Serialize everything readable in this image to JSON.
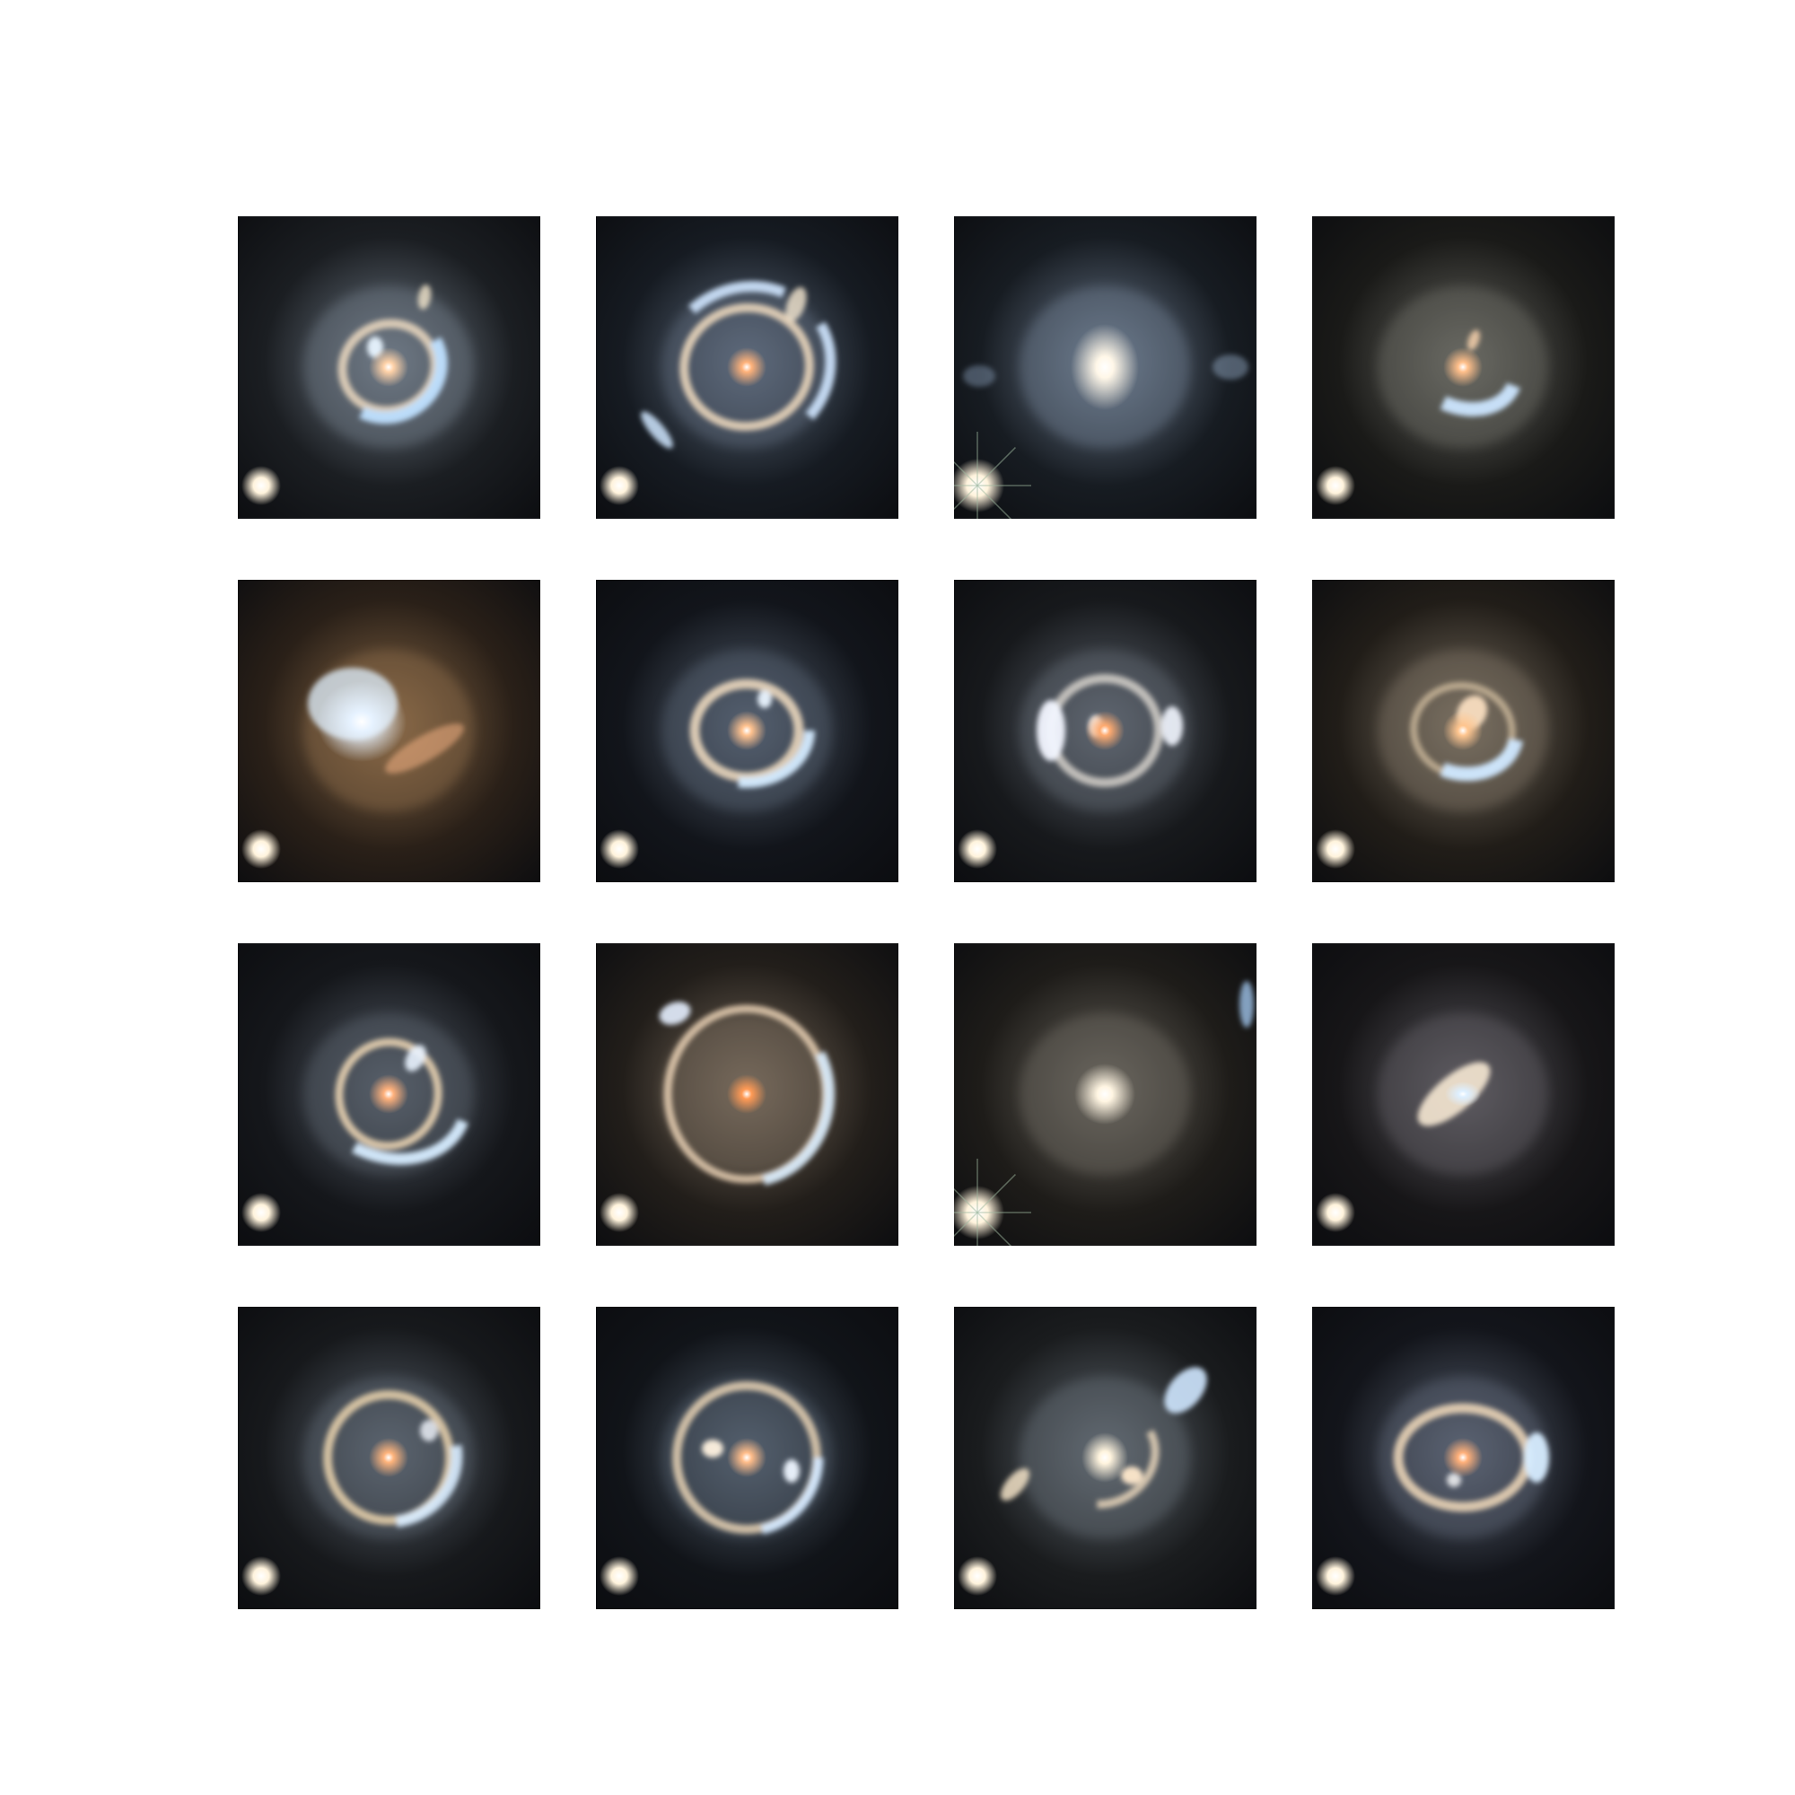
{
  "figure": {
    "grid_rows": 4,
    "grid_cols": 4,
    "background": "#ffffff"
  },
  "panels": [
    {
      "id": "r1c1",
      "kind": "partial-ring-with-bright-arcs",
      "bg_tint": "#1b1e22",
      "halo": "#6f7a86",
      "core": "#ffd2a8",
      "arc": "#bfe0ff",
      "corner_star": true
    },
    {
      "id": "r1c2",
      "kind": "complete-ring-with-arcs",
      "bg_tint": "#161b22",
      "halo": "#5e6b7c",
      "core": "#ffb27a",
      "arc": "#cfe6ff",
      "corner_star": true
    },
    {
      "id": "r1c3",
      "kind": "bright-elliptical-core",
      "bg_tint": "#171c22",
      "halo": "#6d7b8e",
      "core": "#fff7e8",
      "arc": "#a9c4e2",
      "corner_star": true
    },
    {
      "id": "r1c4",
      "kind": "lower-arc",
      "bg_tint": "#1a1a18",
      "halo": "#6a6a64",
      "core": "#ffbf8a",
      "arc": "#cce6ff",
      "corner_star": true
    },
    {
      "id": "r2c1",
      "kind": "diffuse-blue-core-orange-glow",
      "bg_tint": "#2a2018",
      "halo": "#8a6a48",
      "core": "#e6f2ff",
      "arc": "#ffb98a",
      "corner_star": true
    },
    {
      "id": "r2c2",
      "kind": "ring-with-blue-arc",
      "bg_tint": "#12151b",
      "halo": "#55606f",
      "core": "#ffc28f",
      "arc": "#d4ebff",
      "corner_star": true
    },
    {
      "id": "r2c3",
      "kind": "elliptical-ring",
      "bg_tint": "#17191c",
      "halo": "#5f6670",
      "core": "#ffab70",
      "arc": "#f2f6ff",
      "corner_star": true
    },
    {
      "id": "r2c4",
      "kind": "lower-blue-arc",
      "bg_tint": "#211d18",
      "halo": "#7a7062",
      "core": "#ffc690",
      "arc": "#cfe7ff",
      "corner_star": true
    },
    {
      "id": "r3c1",
      "kind": "ring-with-lower-arc",
      "bg_tint": "#15171b",
      "halo": "#58606b",
      "core": "#ffb17c",
      "arc": "#d6ecff",
      "corner_star": true
    },
    {
      "id": "r3c2",
      "kind": "large-complete-ring",
      "bg_tint": "#221e1a",
      "halo": "#776a5c",
      "core": "#ff9a55",
      "arc": "#d5e7f6",
      "corner_star": true
    },
    {
      "id": "r3c3",
      "kind": "bright-round-core",
      "bg_tint": "#1e1c19",
      "halo": "#6a665e",
      "core": "#fff5e2",
      "arc": "#9fc3ea",
      "corner_star": true
    },
    {
      "id": "r3c4",
      "kind": "elongated-blue-core",
      "bg_tint": "#171618",
      "halo": "#5e5c62",
      "core": "#ddefff",
      "arc": "#fff0d9",
      "corner_star": true
    },
    {
      "id": "r4c1",
      "kind": "ring-with-side-arc",
      "bg_tint": "#17191c",
      "halo": "#5c6570",
      "core": "#ffb47c",
      "arc": "#d8ecff",
      "corner_star": true
    },
    {
      "id": "r4c2",
      "kind": "ring-with-images",
      "bg_tint": "#111419",
      "halo": "#54606e",
      "core": "#ffbd8a",
      "arc": "#d2e8ff",
      "corner_star": true
    },
    {
      "id": "r4c3",
      "kind": "bright-core-with-arcs",
      "bg_tint": "#1a1c1e",
      "halo": "#626a72",
      "core": "#fff4de",
      "arc": "#cfe7ff",
      "corner_star": true
    },
    {
      "id": "r4c4",
      "kind": "elliptical-ring-blue-edge",
      "bg_tint": "#13151b",
      "halo": "#5b6473",
      "core": "#ffb07a",
      "arc": "#d6ecff",
      "corner_star": true
    }
  ]
}
